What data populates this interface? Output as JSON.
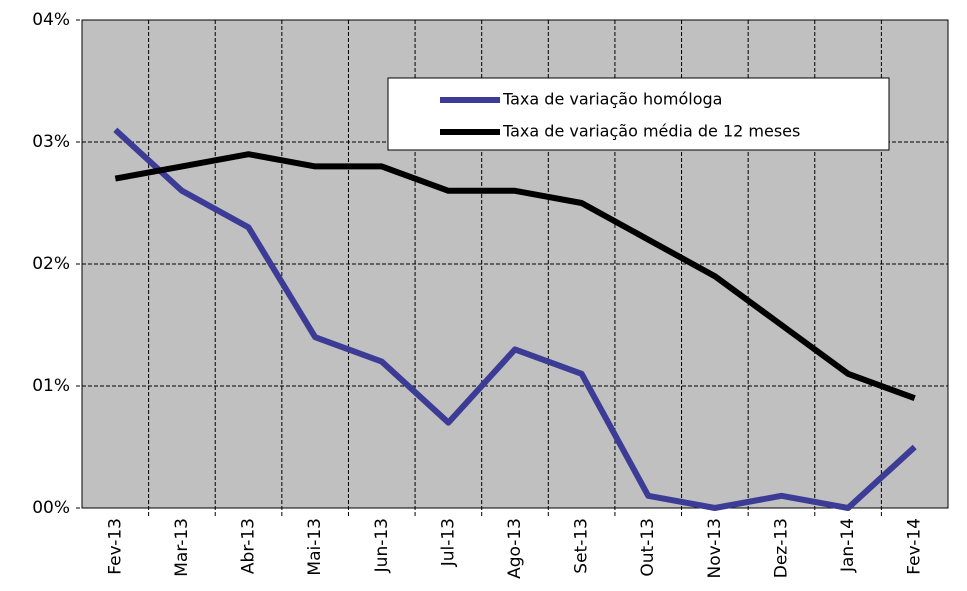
{
  "chart_data": {
    "type": "line",
    "categories": [
      "Fev-13",
      "Mar-13",
      "Abr-13",
      "Mai-13",
      "Jun-13",
      "Jul-13",
      "Ago-13",
      "Set-13",
      "Out-13",
      "Nov-13",
      "Dez-13",
      "Jan-14",
      "Fev-14"
    ],
    "series": [
      {
        "name": "Taxa de variação homóloga",
        "color": "#3c3c96",
        "values": [
          0.31,
          0.26,
          0.23,
          0.14,
          0.12,
          0.07,
          0.13,
          0.11,
          0.01,
          0,
          0.01,
          0,
          0.05
        ]
      },
      {
        "name": "Taxa de variação média de 12 meses",
        "color": "#000000",
        "values": [
          0.27,
          0.28,
          0.29,
          0.28,
          0.28,
          0.26,
          0.26,
          0.25,
          0.22,
          0.19,
          0.15,
          0.11,
          0.09
        ]
      }
    ],
    "ylim": [
      0,
      0.4
    ],
    "yticks": [
      {
        "value": 0,
        "label": "00%"
      },
      {
        "value": 0.1,
        "label": "01%"
      },
      {
        "value": 0.2,
        "label": "02%"
      },
      {
        "value": 0.3,
        "label": "03%"
      },
      {
        "value": 0.4,
        "label": "04%"
      }
    ],
    "grid": true
  }
}
